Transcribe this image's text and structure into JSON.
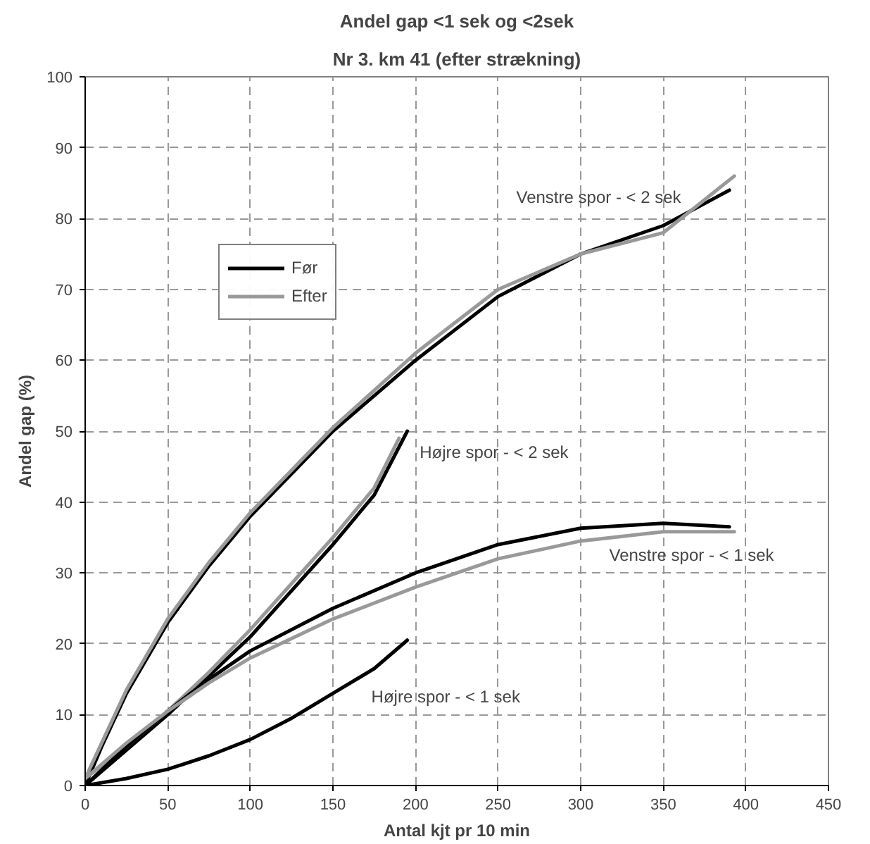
{
  "chart_data": {
    "type": "line",
    "title": "Andel gap <1 sek og <2sek",
    "subtitle": "Nr 3. km 41 (efter strækning)",
    "xlabel": "Antal kjt pr 10 min",
    "ylabel": "Andel gap (%)",
    "xlim": [
      0,
      450
    ],
    "xticks": [
      0,
      50,
      100,
      150,
      200,
      250,
      300,
      350,
      400,
      450
    ],
    "ylim": [
      0,
      100
    ],
    "yticks": [
      0,
      10,
      20,
      30,
      40,
      50,
      60,
      70,
      80,
      90,
      100
    ],
    "grid": true,
    "legend": "top left",
    "series": [
      {
        "name": "Før",
        "color": "#000000",
        "x": [
          0,
          10,
          25,
          50,
          75,
          100,
          150,
          200,
          250,
          300,
          350,
          390
        ],
        "values": [
          0,
          5.5,
          13,
          23,
          31,
          38,
          50,
          60,
          69,
          75,
          79,
          84
        ]
      },
      {
        "name": "Efter",
        "color": "#999999",
        "x": [
          0,
          10,
          25,
          50,
          75,
          100,
          150,
          200,
          250,
          300,
          350,
          393
        ],
        "values": [
          1,
          6,
          13.5,
          23.5,
          31.5,
          38.5,
          50.5,
          61,
          70,
          75,
          78,
          86
        ]
      },
      {
        "color": "#000000",
        "x": [
          0,
          25,
          50,
          75,
          100,
          125,
          150,
          175,
          195
        ],
        "values": [
          0,
          5,
          10,
          15.5,
          21,
          27.5,
          34,
          41,
          50
        ]
      },
      {
        "color": "#999999",
        "x": [
          0,
          25,
          50,
          75,
          100,
          125,
          150,
          175,
          190
        ],
        "values": [
          1,
          5.5,
          10.5,
          16,
          22,
          28.5,
          35,
          42,
          49
        ]
      },
      {
        "color": "#000000",
        "x": [
          0,
          25,
          50,
          75,
          100,
          150,
          200,
          250,
          300,
          350,
          390
        ],
        "values": [
          0,
          5.5,
          10.5,
          15,
          19,
          25,
          30,
          34,
          36.3,
          37,
          36.5
        ]
      },
      {
        "color": "#999999",
        "x": [
          0,
          25,
          50,
          75,
          100,
          150,
          200,
          250,
          300,
          350,
          393
        ],
        "values": [
          1,
          6,
          10.5,
          14.5,
          18,
          23.5,
          28,
          32,
          34.5,
          35.8,
          35.8
        ]
      },
      {
        "color": "#000000",
        "x": [
          0,
          25,
          50,
          75,
          100,
          125,
          150,
          175,
          195
        ],
        "values": [
          0,
          1,
          2.3,
          4.2,
          6.5,
          9.5,
          13,
          16.5,
          20.5
        ]
      }
    ],
    "annotations": [
      "Venstre spor - < 2 sek",
      "Højre spor - < 2 sek",
      "Venstre spor - < 1 sek",
      "Højre spor - < 1 sek"
    ]
  }
}
